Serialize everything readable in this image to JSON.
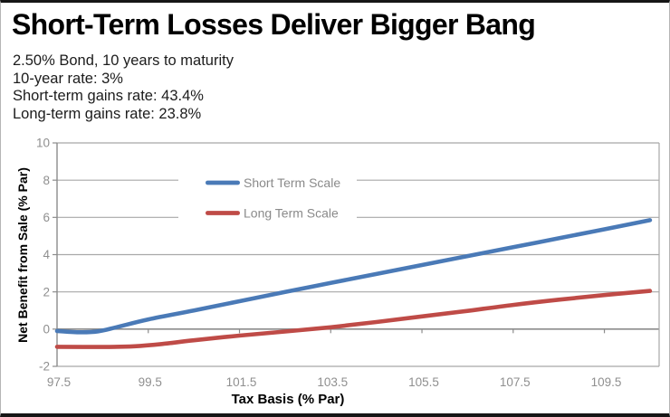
{
  "header": {
    "title": "Short-Term Losses Deliver Bigger Bang",
    "subtitle_lines": [
      "2.50% Bond, 10 years to maturity",
      "10-year rate: 3%",
      "Short-term gains rate: 43.4%",
      "Long-term gains rate: 23.8%"
    ]
  },
  "chart_data": {
    "type": "line",
    "title": "Short-Term Losses Deliver Bigger Bang",
    "xlabel": "Tax Basis (% Par)",
    "ylabel": "Net Benefit from Sale (% Par)",
    "xlim": [
      97.5,
      110.7
    ],
    "ylim": [
      -2,
      10
    ],
    "x_ticks": [
      97.5,
      99.5,
      101.5,
      103.5,
      105.5,
      107.5,
      109.5
    ],
    "y_ticks": [
      10,
      8,
      6,
      4,
      2,
      0,
      -2
    ],
    "grid": "horizontal",
    "legend_position": "inside-top-center",
    "colors": {
      "grid": "#a8a8a8",
      "axis": "#8c8c8c",
      "tick_text": "#8f8f8f",
      "legend_text": "#8a8a8a",
      "short_term": "#4a7ab7",
      "long_term": "#bf4b47"
    },
    "series": [
      {
        "name": "Short Term Scale",
        "color": "#4a7ab7",
        "points": [
          [
            97.5,
            -0.1
          ],
          [
            98.0,
            -0.17
          ],
          [
            98.4,
            -0.12
          ],
          [
            98.8,
            0.1
          ],
          [
            99.5,
            0.52
          ],
          [
            100.5,
            1.0
          ],
          [
            101.5,
            1.5
          ],
          [
            102.5,
            2.0
          ],
          [
            103.5,
            2.48
          ],
          [
            104.5,
            2.96
          ],
          [
            105.5,
            3.44
          ],
          [
            106.5,
            3.92
          ],
          [
            107.5,
            4.4
          ],
          [
            108.5,
            4.88
          ],
          [
            109.5,
            5.36
          ],
          [
            110.5,
            5.85
          ]
        ]
      },
      {
        "name": "Long Term Scale",
        "color": "#bf4b47",
        "points": [
          [
            97.5,
            -0.95
          ],
          [
            98.5,
            -0.96
          ],
          [
            99.2,
            -0.92
          ],
          [
            99.8,
            -0.8
          ],
          [
            100.5,
            -0.6
          ],
          [
            101.5,
            -0.35
          ],
          [
            102.5,
            -0.13
          ],
          [
            103.5,
            0.1
          ],
          [
            104.5,
            0.38
          ],
          [
            105.5,
            0.68
          ],
          [
            106.5,
            0.98
          ],
          [
            107.5,
            1.3
          ],
          [
            108.5,
            1.58
          ],
          [
            109.5,
            1.83
          ],
          [
            110.5,
            2.05
          ]
        ]
      }
    ]
  }
}
